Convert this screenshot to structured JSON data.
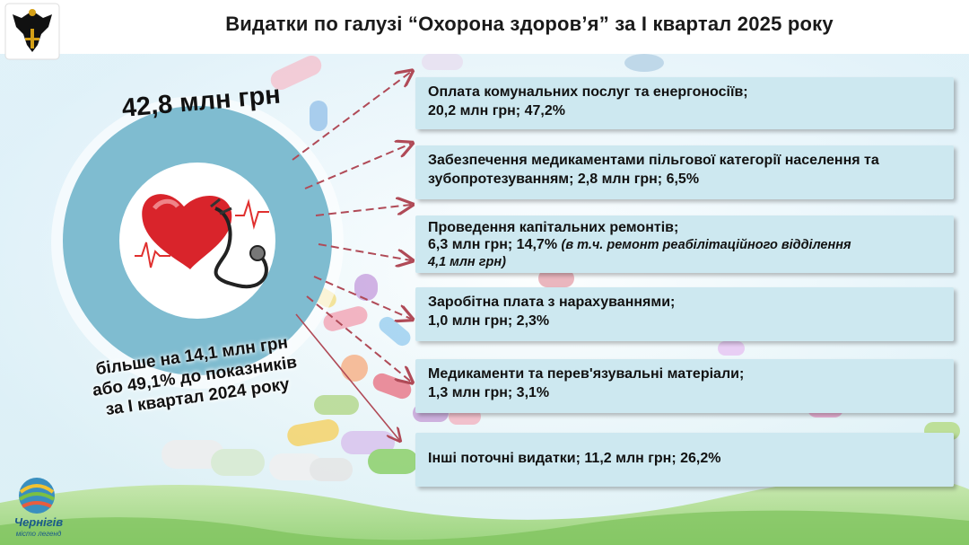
{
  "title": "Видатки по галузі “Охорона здоров’я” за I квартал 2025 року",
  "total": "42,8 млн грн",
  "note": [
    "більше на 14,1 млн грн",
    "або 49,1% до показників",
    "за I квартал 2024 року"
  ],
  "items": [
    {
      "line1": "Оплата комунальних послуг та енергоносіїв;",
      "line2": "20,2 млн грн; 47,2%"
    },
    {
      "line1": "Забезпечення медикаментами пільгової категорії населення та",
      "line2": "зубопротезуванням; 2,8 млн грн; 6,5%"
    },
    {
      "line1": "Проведення капітальних ремонтів;",
      "line2": "6,3 млн грн; 14,7%",
      "line2_note": "(в т.ч. ремонт реабілітаційного відділення",
      "line3_note": "4,1 млн грн)"
    },
    {
      "line1": "Заробітна плата з нарахуваннями;",
      "line2": "1,0 млн грн; 2,3%"
    },
    {
      "line1": "Медикаменти та перев'язувальні матеріали;",
      "line2": "1,3 млн грн; 3,1%"
    },
    {
      "line1": "Інші поточні видатки; 11,2 млн грн; 26,2%"
    }
  ],
  "logo": {
    "name": "Чернігів",
    "subtitle": "місто легенд"
  },
  "colors": {
    "ring": "#7fbcd0",
    "box": "#cde8f0",
    "arrow": "#b04a57"
  }
}
